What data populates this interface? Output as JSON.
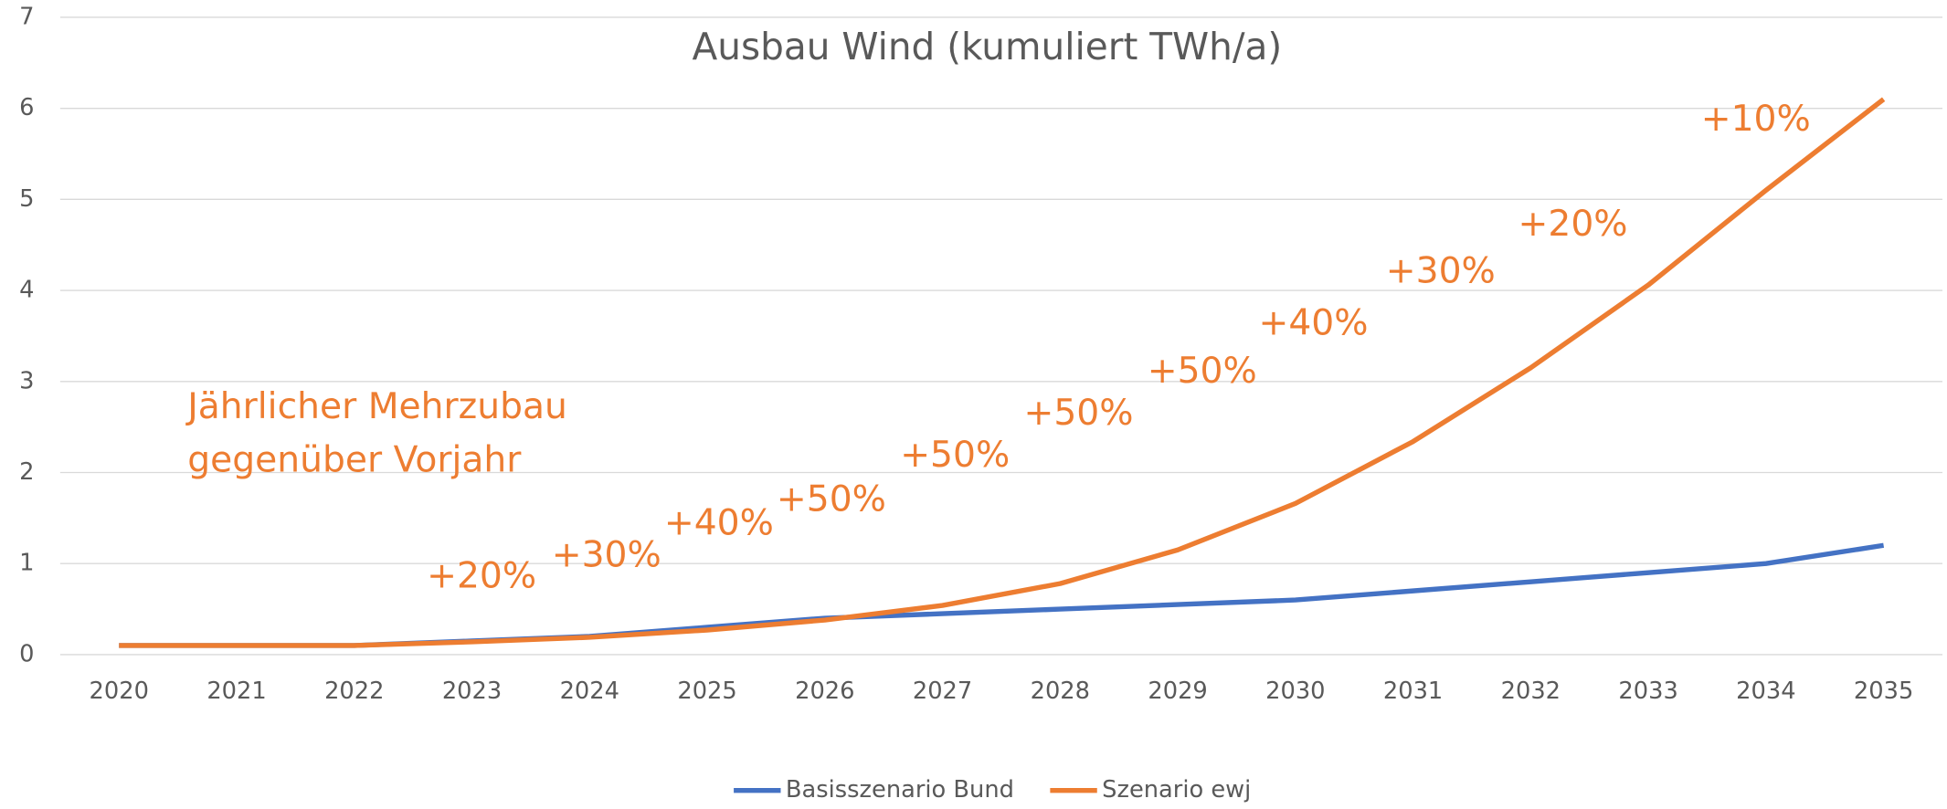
{
  "chart_data": {
    "type": "line",
    "title": "Ausbau Wind (kumuliert TWh/a)",
    "categories": [
      "2020",
      "2021",
      "2022",
      "2023",
      "2024",
      "2025",
      "2026",
      "2027",
      "2028",
      "2029",
      "2030",
      "2031",
      "2032",
      "2033",
      "2034",
      "2035"
    ],
    "series": [
      {
        "name": "Basisszenario Bund",
        "color": "#4472C4",
        "values": [
          0.1,
          0.1,
          0.1,
          0.15,
          0.2,
          0.3,
          0.4,
          0.45,
          0.5,
          0.55,
          0.6,
          0.7,
          0.8,
          0.9,
          1.0,
          1.2
        ]
      },
      {
        "name": "Szenario ewj",
        "color": "#ED7D31",
        "values": [
          0.1,
          0.1,
          0.1,
          0.14,
          0.19,
          0.27,
          0.38,
          0.54,
          0.78,
          1.15,
          1.66,
          2.34,
          3.15,
          4.06,
          5.1,
          6.1
        ]
      }
    ],
    "ylim": [
      0,
      7
    ],
    "yticks": [
      0,
      1,
      2,
      3,
      4,
      5,
      6,
      7
    ],
    "grid": true,
    "legend": "bottom",
    "annotation_note": [
      "Jährlicher Mehrzubau",
      "gegenüber Vorjahr"
    ],
    "annotations": [
      "+20%",
      "+30%",
      "+40%",
      "+50%",
      "+50%",
      "+50%",
      "+50%",
      "+40%",
      "+30%",
      "+20%",
      "+10%"
    ]
  }
}
